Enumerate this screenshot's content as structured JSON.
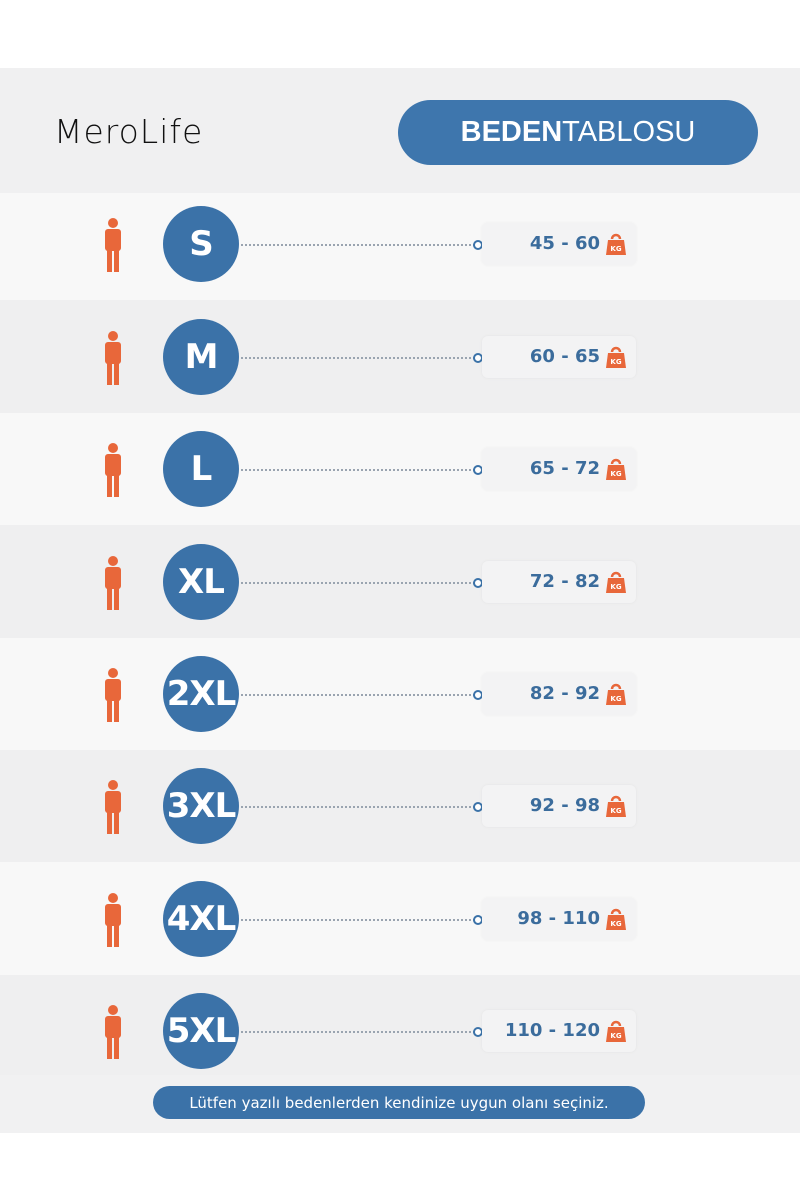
{
  "brand": {
    "logo": "MeroLife"
  },
  "header": {
    "title_bold": "BEDEN",
    "title_regular": "TABLOSU"
  },
  "colors": {
    "accent": "#3b72a8",
    "icon": "#e8673a"
  },
  "sizes": [
    {
      "size": "S",
      "weight": "45 - 60"
    },
    {
      "size": "M",
      "weight": "60 - 65"
    },
    {
      "size": "L",
      "weight": "65 - 72"
    },
    {
      "size": "XL",
      "weight": "72 - 82"
    },
    {
      "size": "2XL",
      "weight": "82 - 92"
    },
    {
      "size": "3XL",
      "weight": "92 - 98"
    },
    {
      "size": "4XL",
      "weight": "98 - 110"
    },
    {
      "size": "5XL",
      "weight": "110 - 120"
    }
  ],
  "unit": "KG",
  "footer": {
    "note": "Lütfen yazılı bedenlerden kendinize uygun olanı seçiniz."
  }
}
